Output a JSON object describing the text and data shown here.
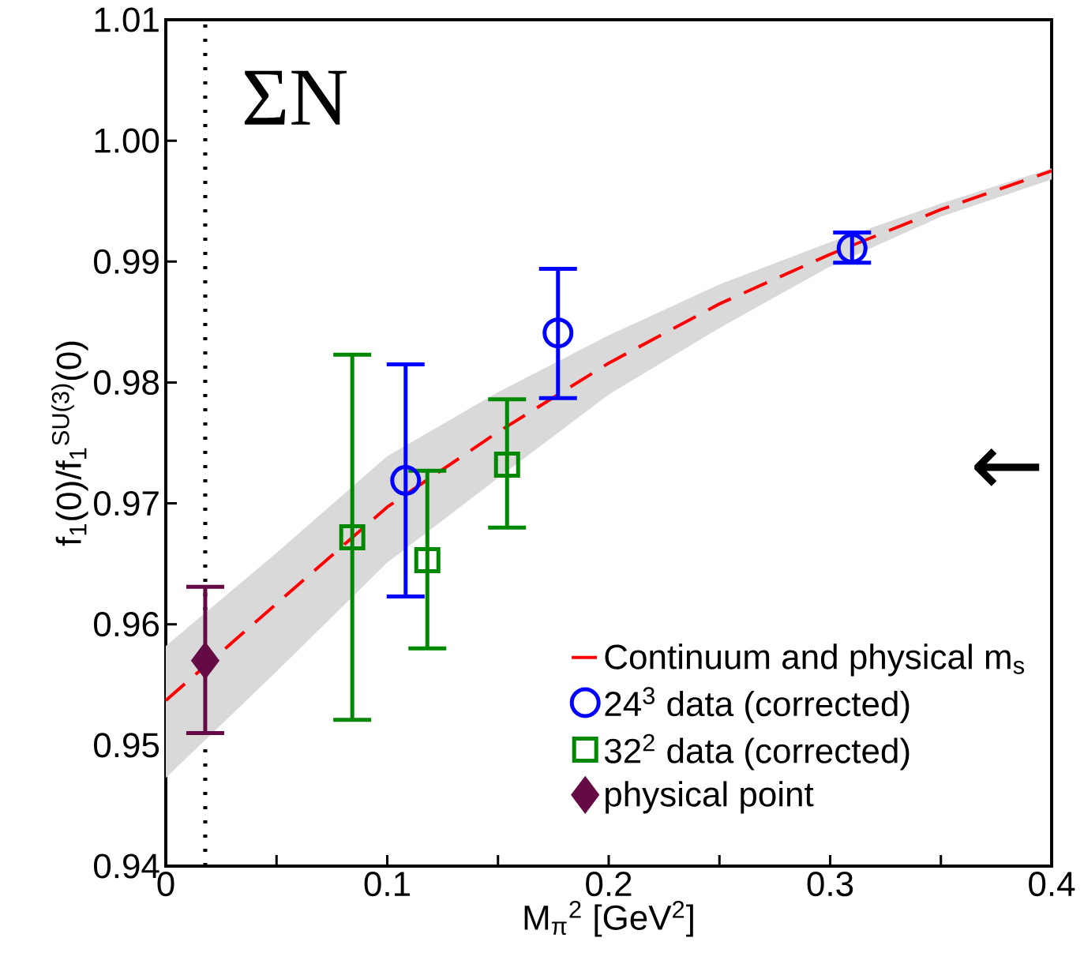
{
  "chart_data": {
    "type": "scatter",
    "xlabel": "M$_{π}$$^{2}$  [GeV$^{2}$]",
    "ylabel": "f$_{1}$(0)/f$_{1}$$^{SU(3)}$(0)",
    "xlim": [
      0,
      0.4
    ],
    "ylim": [
      0.94,
      1.01
    ],
    "xticks": [
      0,
      {
        "value": 0.05,
        "label": null
      },
      0.1,
      {
        "value": 0.15,
        "label": null
      },
      0.2,
      {
        "value": 0.25,
        "label": null
      },
      0.3,
      {
        "value": 0.35,
        "label": null
      },
      0.4
    ],
    "yticks": [
      0.94,
      0.95,
      0.96,
      0.97,
      0.98,
      0.99,
      {
        "value": 1,
        "label": "1.00"
      },
      1.01
    ],
    "grid": false,
    "legend": "bottom right",
    "series": [
      {
        "name": "Continuum and physical m$_{s}$",
        "type": "line",
        "line_style": "dashed",
        "marker": "none",
        "color": "#ff0000",
        "x": [
          0,
          0.05,
          0.1,
          0.15,
          0.2,
          0.25,
          0.3,
          0.35,
          0.4
        ],
        "values": [
          0.9537,
          0.9617,
          0.9697,
          0.9759,
          0.9816,
          0.9865,
          0.9906,
          0.9943,
          0.9975
        ],
        "lower": [
          0.9473,
          0.9561,
          0.9651,
          0.9721,
          0.979,
          0.9845,
          0.9896,
          0.9937,
          0.9968
        ],
        "upper": [
          0.9582,
          0.9659,
          0.9739,
          0.9792,
          0.9839,
          0.9881,
          0.9916,
          0.9948,
          0.9977
        ]
      },
      {
        "name": "24$^{3}$ data (corrected)",
        "marker": "circle",
        "color": "#0000ff",
        "x": [
          0.1083,
          0.1771,
          0.3099
        ],
        "values": [
          0.9719,
          0.9841,
          0.9911
        ],
        "errors": [
          [
            0.9623,
            0.9815
          ],
          [
            0.9787,
            0.9894
          ],
          [
            0.9899,
            0.9924
          ]
        ]
      },
      {
        "name": "32$^{2}$ data (corrected)",
        "marker": "square",
        "color": "#008800",
        "x": [
          0.0842,
          0.1181,
          0.1541
        ],
        "values": [
          0.9672,
          0.9653,
          0.9732
        ],
        "errors": [
          [
            0.9521,
            0.9823
          ],
          [
            0.958,
            0.9727
          ],
          [
            0.968,
            0.9786
          ]
        ]
      },
      {
        "name": "physical point",
        "marker": "diamond",
        "color": "#660a45",
        "x": [
          0.0178
        ],
        "values": [
          0.957
        ],
        "errors": [
          [
            0.951,
            0.9631
          ]
        ]
      }
    ],
    "ref_lines": [
      {
        "axis": "x",
        "value": 0.0178,
        "line_style": "dotted",
        "color": "#000000"
      }
    ],
    "annotations": [
      "ΣN",
      "←"
    ]
  }
}
